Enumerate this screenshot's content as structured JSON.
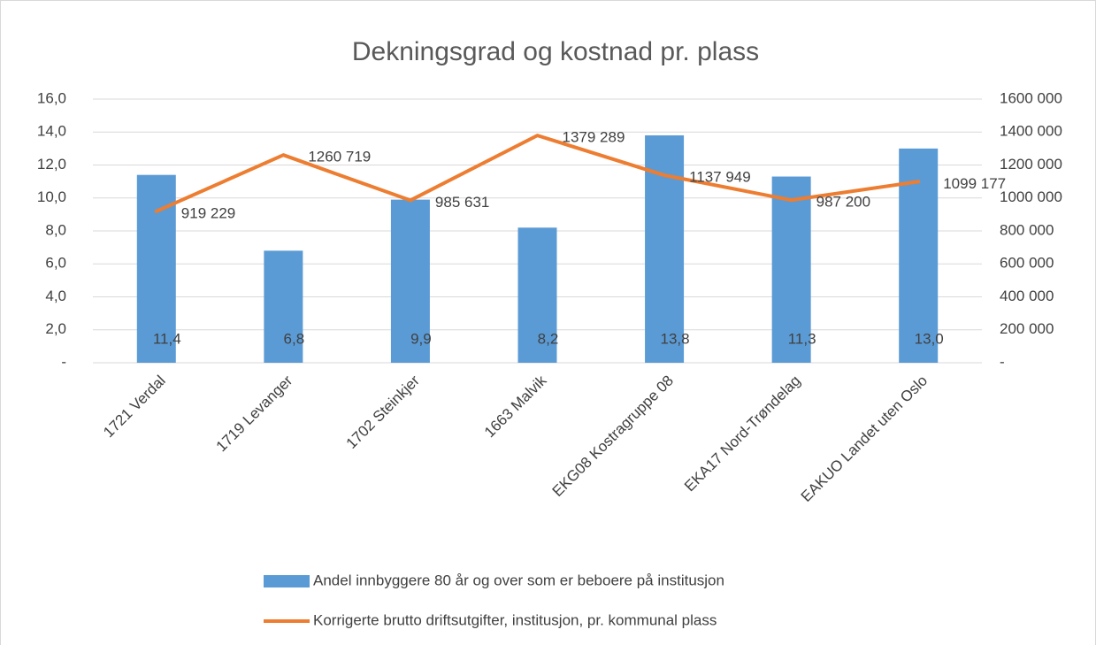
{
  "chart_data": {
    "type": "bar",
    "title": "Dekningsgrad og kostnad pr. plass",
    "categories": [
      "1721 Verdal",
      "1719 Levanger",
      "1702 Steinkjer",
      "1663 Malvik",
      "EKG08 Kostragruppe 08",
      "EKA17 Nord-Trøndelag",
      "EAKUO Landet uten Oslo"
    ],
    "series": [
      {
        "name": "Andel innbyggere 80 år og over som er beboere på institusjon",
        "type": "bar",
        "color": "#5b9bd5",
        "values": [
          11.4,
          6.8,
          9.9,
          8.2,
          13.8,
          11.3,
          13.0
        ],
        "value_labels": [
          "11,4",
          "6,8",
          "9,9",
          "8,2",
          "13,8",
          "11,3",
          "13,0"
        ]
      },
      {
        "name": "Korrigerte brutto driftsutgifter, institusjon, pr. kommunal plass",
        "type": "line",
        "axis": "y2",
        "color": "#ed7d31",
        "values": [
          919229,
          1260719,
          985631,
          1379289,
          1137949,
          987200,
          1099177
        ],
        "value_labels": [
          "919 229",
          "1260 719",
          "985 631",
          "1379 289",
          "1137 949",
          "987 200",
          "1099 177"
        ]
      }
    ],
    "ylim": [
      0,
      16
    ],
    "yticks": [
      {
        "value": 0,
        "label": "-"
      },
      {
        "value": 2,
        "label": "2,0"
      },
      {
        "value": 4,
        "label": "4,0"
      },
      {
        "value": 6,
        "label": "6,0"
      },
      {
        "value": 8,
        "label": "8,0"
      },
      {
        "value": 10,
        "label": "10,0"
      },
      {
        "value": 12,
        "label": "12,0"
      },
      {
        "value": 14,
        "label": "14,0"
      },
      {
        "value": 16,
        "label": "16,0"
      }
    ],
    "y2lim": [
      0,
      1600000
    ],
    "y2ticks": [
      {
        "value": 0,
        "label": "-"
      },
      {
        "value": 200000,
        "label": "200 000"
      },
      {
        "value": 400000,
        "label": "400 000"
      },
      {
        "value": 600000,
        "label": "600 000"
      },
      {
        "value": 800000,
        "label": "800 000"
      },
      {
        "value": 1000000,
        "label": "1000 000"
      },
      {
        "value": 1200000,
        "label": "1200 000"
      },
      {
        "value": 1400000,
        "label": "1400 000"
      },
      {
        "value": 1600000,
        "label": "1600 000"
      }
    ],
    "grid": true,
    "legend": "bottom"
  }
}
